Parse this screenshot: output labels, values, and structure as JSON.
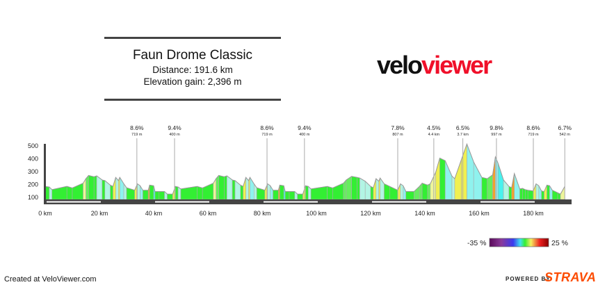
{
  "header": {
    "title": "Faun Drome Classic",
    "distance": "Distance: 191.6 km",
    "elevation_gain": "Elevation gain: 2,396 m"
  },
  "logo": {
    "part1": "velo",
    "part2": "viewer"
  },
  "footer": {
    "credit": "Created at VeloViewer.com",
    "powered_by": "POWERED BY",
    "strava": "STRAVA"
  },
  "legend": {
    "min_label": "-35 %",
    "max_label": "25 %"
  },
  "colors": {
    "brand_red": "#f0102a",
    "strava_orange": "#fc4c02",
    "axis": "#444444"
  },
  "chart_data": {
    "type": "area",
    "xlabel": "",
    "ylabel": "",
    "xlim": [
      0,
      191.6
    ],
    "ylim": [
      60,
      520
    ],
    "x_ticks": [
      "0 km",
      "20 km",
      "40 km",
      "60 km",
      "80 km",
      "100 km",
      "120 km",
      "140 km",
      "160 km",
      "180 km"
    ],
    "x_tick_values": [
      0,
      20,
      40,
      60,
      80,
      100,
      120,
      140,
      160,
      180
    ],
    "y_ticks": [
      "100",
      "200",
      "300",
      "400",
      "500"
    ],
    "y_tick_values": [
      100,
      200,
      300,
      400,
      500
    ],
    "profile_km": [
      0,
      1.5,
      2.5,
      8,
      10,
      14,
      15,
      16,
      18,
      19,
      21,
      22,
      24,
      25,
      26,
      27,
      27.5,
      29,
      30,
      33,
      34,
      35,
      36,
      38,
      38.5,
      40,
      40.5,
      42,
      44,
      45,
      47,
      48,
      49,
      50,
      56,
      58,
      62,
      63,
      64,
      66,
      67,
      69,
      70,
      72,
      73,
      74,
      75,
      75.5,
      77,
      78,
      81,
      82,
      83,
      84,
      86,
      86.5,
      88,
      88.5,
      90,
      92,
      93,
      95,
      96,
      97,
      98,
      104,
      106,
      110,
      111,
      113,
      115,
      116,
      118,
      120,
      121,
      122,
      123,
      123.5,
      125,
      127,
      130,
      131,
      132,
      133,
      136,
      138,
      139,
      141,
      142,
      144,
      145.5,
      147.5,
      150,
      151,
      153.5,
      155.5,
      158,
      161,
      163,
      165,
      166,
      167,
      169,
      171,
      172,
      173,
      175,
      176,
      177,
      178,
      180,
      181,
      182,
      183,
      184,
      185,
      186,
      187,
      189,
      190,
      191.6
    ],
    "profile_elev": [
      180,
      175,
      155,
      180,
      168,
      205,
      240,
      265,
      255,
      262,
      230,
      225,
      190,
      180,
      250,
      225,
      250,
      200,
      170,
      150,
      200,
      185,
      150,
      150,
      190,
      185,
      140,
      140,
      140,
      120,
      120,
      180,
      175,
      160,
      180,
      168,
      205,
      240,
      265,
      255,
      262,
      230,
      225,
      190,
      180,
      250,
      225,
      250,
      200,
      170,
      150,
      200,
      185,
      150,
      150,
      190,
      185,
      140,
      140,
      140,
      120,
      120,
      185,
      180,
      160,
      180,
      168,
      205,
      230,
      258,
      250,
      245,
      220,
      180,
      170,
      240,
      220,
      245,
      200,
      180,
      150,
      200,
      185,
      140,
      140,
      180,
      205,
      190,
      200,
      290,
      400,
      380,
      260,
      240,
      390,
      510,
      370,
      250,
      240,
      270,
      410,
      360,
      230,
      180,
      170,
      280,
      160,
      165,
      155,
      150,
      145,
      200,
      185,
      145,
      140,
      190,
      185,
      150,
      130,
      120,
      180
    ],
    "climbs": [
      {
        "gradient": "8.6%",
        "length": "719 m",
        "at_km": 33.8
      },
      {
        "gradient": "9.4%",
        "length": "400 m",
        "at_km": 47.7
      },
      {
        "gradient": "8.6%",
        "length": "719 m",
        "at_km": 81.8
      },
      {
        "gradient": "9.4%",
        "length": "400 m",
        "at_km": 95.6
      },
      {
        "gradient": "7.8%",
        "length": "807 m",
        "at_km": 130
      },
      {
        "gradient": "4.5%",
        "length": "4.4 km",
        "at_km": 143.3
      },
      {
        "gradient": "6.5%",
        "length": "3.7 km",
        "at_km": 154
      },
      {
        "gradient": "9.8%",
        "length": "997 m",
        "at_km": 166.4
      },
      {
        "gradient": "8.6%",
        "length": "719 m",
        "at_km": 180
      },
      {
        "gradient": "6.7%",
        "length": "542 m",
        "at_km": 191.6
      }
    ],
    "grid": false,
    "color_scale": {
      "min_percent": -35,
      "max_percent": 25
    }
  }
}
